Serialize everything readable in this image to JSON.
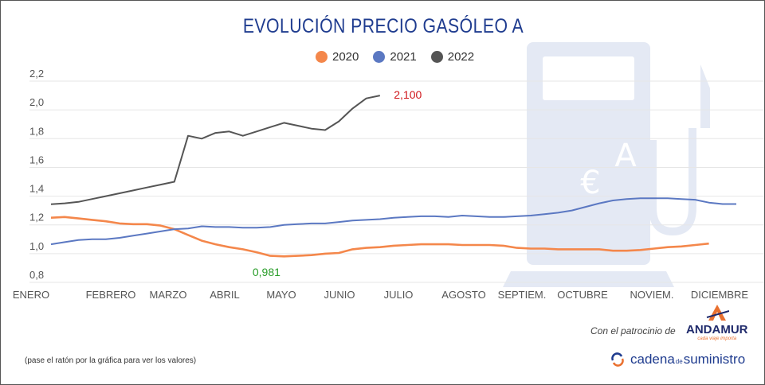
{
  "title": "EVOLUCIÓN PRECIO GASÓLEO A",
  "note": "(pase el ratón por la gráfica para ver los valores)",
  "sponsor": {
    "text": "Con el patrocinio de",
    "brand": "ANDAMUR",
    "tagline": "cada viaje importa"
  },
  "publisher": {
    "part1": "cadena",
    "part2": "de",
    "part3": "suministro"
  },
  "chart_data": {
    "type": "line",
    "title": "EVOLUCIÓN PRECIO GASÓLEO A",
    "xlabel": "",
    "ylabel": "",
    "ylim": [
      0.8,
      2.2
    ],
    "yticks": [
      "0,8",
      "1,0",
      "1,2",
      "1,4",
      "1,6",
      "1,8",
      "2,0",
      "2,2"
    ],
    "ytick_values": [
      0.8,
      1.0,
      1.2,
      1.4,
      1.6,
      1.8,
      2.0,
      2.2
    ],
    "x_unit": "week",
    "months": [
      "ENERO",
      "FEBRERO",
      "MARZO",
      "ABRIL",
      "MAYO",
      "JUNIO",
      "JULIO",
      "AGOSTO",
      "SEPTIEM.",
      "OCTUBRE",
      "NOVIEM.",
      "DICIEMBRE"
    ],
    "legend_position": "top-center",
    "grid": true,
    "series": [
      {
        "name": "2020",
        "color": "#f4874b",
        "values": [
          1.25,
          1.255,
          1.245,
          1.235,
          1.225,
          1.21,
          1.205,
          1.205,
          1.195,
          1.17,
          1.13,
          1.09,
          1.065,
          1.045,
          1.03,
          1.01,
          0.985,
          0.981,
          0.985,
          0.99,
          1.0,
          1.005,
          1.03,
          1.04,
          1.045,
          1.055,
          1.06,
          1.065,
          1.065,
          1.065,
          1.06,
          1.06,
          1.06,
          1.055,
          1.04,
          1.035,
          1.035,
          1.03,
          1.03,
          1.03,
          1.03,
          1.02,
          1.02,
          1.025,
          1.035,
          1.045,
          1.05,
          1.06,
          1.07
        ]
      },
      {
        "name": "2021",
        "color": "#5b78c2",
        "values": [
          1.065,
          1.08,
          1.095,
          1.1,
          1.1,
          1.11,
          1.125,
          1.14,
          1.155,
          1.17,
          1.175,
          1.19,
          1.185,
          1.185,
          1.18,
          1.18,
          1.185,
          1.2,
          1.205,
          1.21,
          1.21,
          1.22,
          1.23,
          1.235,
          1.24,
          1.25,
          1.255,
          1.26,
          1.26,
          1.255,
          1.265,
          1.26,
          1.255,
          1.255,
          1.26,
          1.265,
          1.275,
          1.285,
          1.3,
          1.325,
          1.35,
          1.37,
          1.38,
          1.385,
          1.385,
          1.385,
          1.38,
          1.375,
          1.355,
          1.345,
          1.345
        ]
      },
      {
        "name": "2022",
        "color": "#555555",
        "values": [
          1.344,
          1.35,
          1.36,
          1.38,
          1.4,
          1.42,
          1.44,
          1.46,
          1.48,
          1.5,
          1.82,
          1.8,
          1.84,
          1.85,
          1.82,
          1.85,
          1.88,
          1.91,
          1.89,
          1.87,
          1.86,
          1.92,
          2.01,
          2.08,
          2.1
        ]
      }
    ],
    "annotations": [
      {
        "text": "2,100",
        "series": "2022",
        "color": "#d0161b",
        "kind": "max"
      },
      {
        "text": "0,981",
        "series": "2020",
        "color": "#2a9d2a",
        "kind": "min"
      }
    ]
  }
}
